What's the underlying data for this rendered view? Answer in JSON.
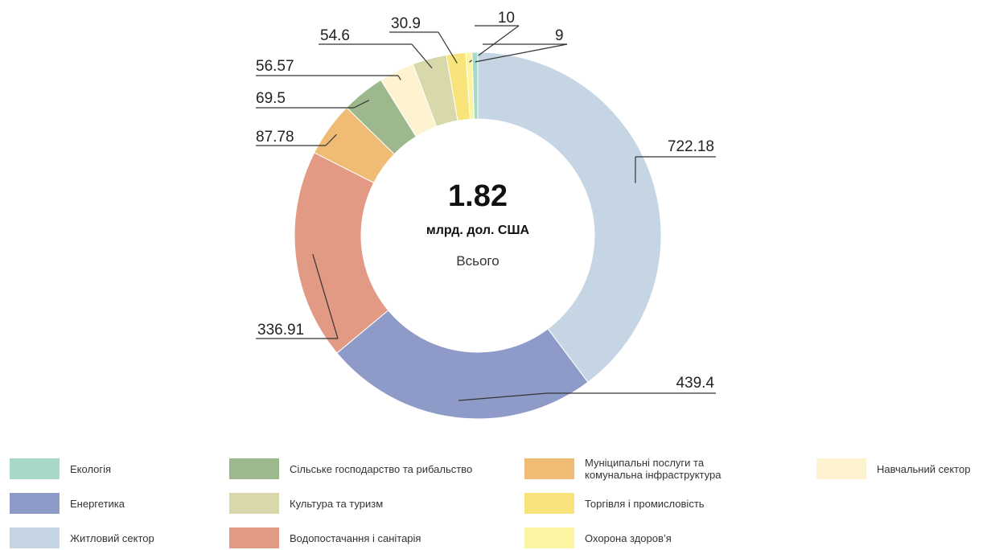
{
  "chart_data": {
    "type": "donut",
    "center_value": "1.82",
    "center_unit": "млрд. дол. США",
    "center_label": "Всього",
    "categories": [
      "Житловий сектор",
      "Енергетика",
      "Водопостачання і санітарія",
      "Муніципальні послуги та комунальна інфраструктура",
      "Сільське господарство та рибальство",
      "Навчальний сектор",
      "Культура та туризм",
      "Торгівля і промисловість",
      "Охорона здоров’я",
      "Екологія"
    ],
    "values": [
      722.18,
      439.4,
      336.91,
      87.78,
      69.5,
      56.57,
      54.6,
      30.9,
      10,
      9
    ],
    "colors": [
      "#c5d5e4",
      "#8e9bc8",
      "#e39a84",
      "#f0bb74",
      "#9cb88c",
      "#fdf3d0",
      "#d9d8aa",
      "#f8e47a",
      "#fbf4a0",
      "#a8d8c8"
    ]
  }
}
